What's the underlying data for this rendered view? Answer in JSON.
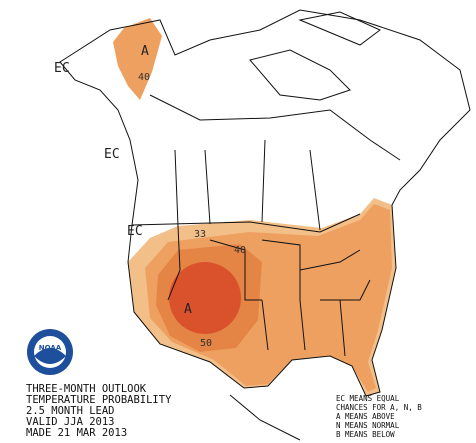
{
  "map": {
    "region_labels": [
      "EC",
      "EC",
      "EC",
      "A",
      "A"
    ],
    "contours": [
      40,
      33,
      40,
      50
    ],
    "logo": "NOAA",
    "title_lines": [
      "THREE-MONTH OUTLOOK",
      "TEMPERATURE PROBABILITY",
      "2.5 MONTH LEAD",
      "VALID JJA 2013",
      "MADE 21 MAR 2013"
    ],
    "legend_lines": [
      "EC MEANS EQUAL",
      "CHANCES FOR A, N, B",
      "A MEANS ABOVE",
      "N MEANS NORMAL",
      "B MEANS BELOW"
    ]
  }
}
